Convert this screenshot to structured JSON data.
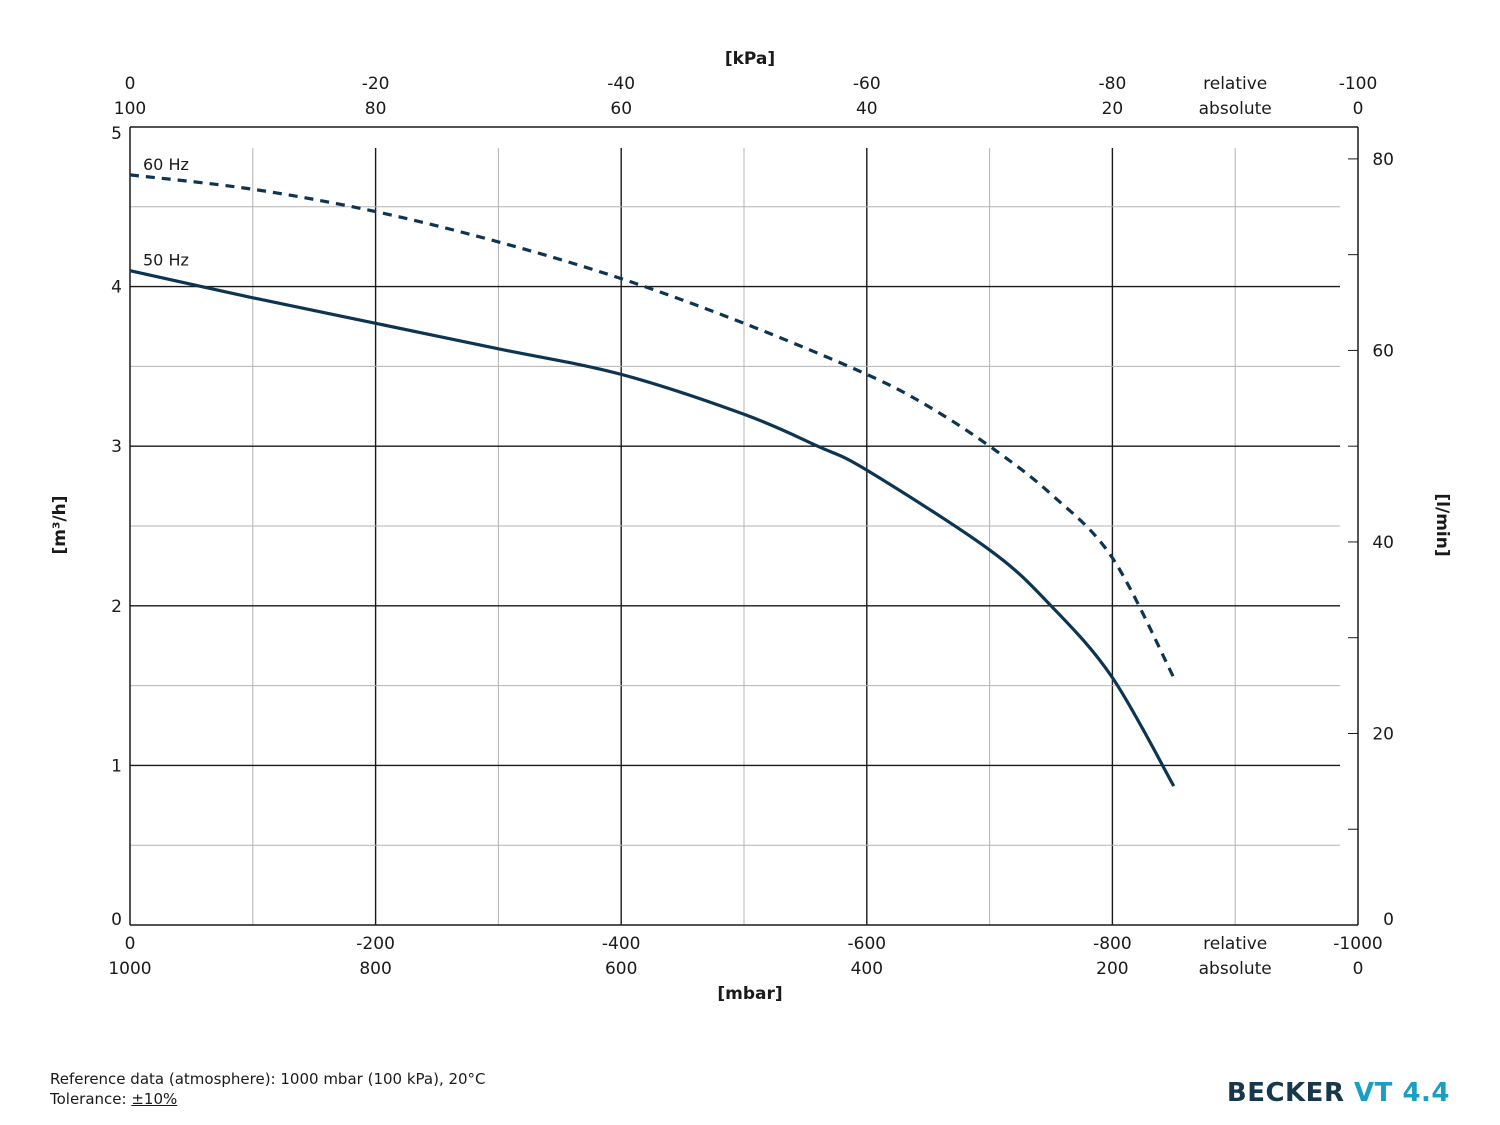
{
  "chart_data": {
    "type": "line",
    "x_bottom": {
      "title": "[mbar]",
      "range": [
        0,
        -1000
      ],
      "relative_ticks": [
        "0",
        "-200",
        "-400",
        "-600",
        "-800",
        "relative",
        "-1000"
      ],
      "absolute_ticks": [
        "1000",
        "800",
        "600",
        "400",
        "200",
        "absolute",
        "0"
      ]
    },
    "x_top": {
      "title": "[kPa]",
      "relative_ticks": [
        "0",
        "-20",
        "-40",
        "-60",
        "-80",
        "relative",
        "-100"
      ],
      "absolute_ticks": [
        "100",
        "80",
        "60",
        "40",
        "20",
        "absolute",
        "0"
      ]
    },
    "y_left": {
      "title": "[m³/h]",
      "range": [
        0,
        5
      ],
      "ticks": [
        "0",
        "1",
        "2",
        "3",
        "4",
        "5"
      ]
    },
    "y_right": {
      "title": "[l/min]",
      "range": [
        0,
        83.33
      ],
      "ticks": [
        "0",
        "20",
        "40",
        "60",
        "80"
      ]
    },
    "grid": true,
    "series": [
      {
        "name": "50 Hz",
        "style": "solid",
        "color": "#0d3552",
        "x": [
          0,
          -100,
          -200,
          -300,
          -400,
          -500,
          -560,
          -600,
          -700,
          -750,
          -800,
          -850
        ],
        "y": [
          4.1,
          3.93,
          3.77,
          3.61,
          3.45,
          3.2,
          3.0,
          2.85,
          2.35,
          2.0,
          1.55,
          0.87
        ]
      },
      {
        "name": "60 Hz",
        "style": "dashed",
        "color": "#0d3552",
        "x": [
          0,
          -100,
          -200,
          -300,
          -400,
          -500,
          -600,
          -650,
          -700,
          -750,
          -800,
          -850
        ],
        "y": [
          4.7,
          4.61,
          4.47,
          4.28,
          4.05,
          3.77,
          3.45,
          3.25,
          3.0,
          2.7,
          2.3,
          1.55
        ]
      }
    ]
  },
  "footnotes": {
    "reference": "Reference data (atmosphere): 1000 mbar (100 kPa), 20°C",
    "tolerance_label": "Tolerance: ",
    "tolerance_value": "±10%"
  },
  "brand": {
    "name": "BECKER",
    "model": "VT 4.4"
  }
}
